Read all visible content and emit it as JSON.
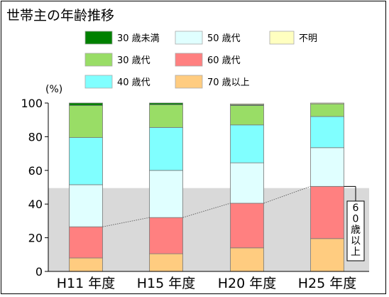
{
  "chart_data": {
    "type": "bar",
    "stacked": true,
    "title": "世帯主の年齢推移",
    "ylabel": "(%)",
    "ylim": [
      0,
      100
    ],
    "yticks": [
      0,
      20,
      40,
      60,
      80,
      100
    ],
    "categories": [
      "H11 年度",
      "H15 年度",
      "H20 年度",
      "H25 年度"
    ],
    "series": [
      {
        "name": "70 歳以上",
        "color": "#ffcc80",
        "values": [
          8,
          10.5,
          14,
          19.5
        ]
      },
      {
        "name": "60 歳代",
        "color": "#ff8080",
        "values": [
          18.5,
          21.5,
          26.5,
          31
        ]
      },
      {
        "name": "50 歳代",
        "color": "#e0ffff",
        "values": [
          25,
          28,
          24,
          23
        ]
      },
      {
        "name": "40 歳代",
        "color": "#80ffff",
        "values": [
          28,
          25.5,
          22.5,
          18.5
        ]
      },
      {
        "name": "30 歳代",
        "color": "#99dd66",
        "values": [
          19,
          13.5,
          11.5,
          7.5
        ]
      },
      {
        "name": "30 歳未満",
        "color": "#008000",
        "values": [
          1.5,
          1,
          0.5,
          0
        ]
      },
      {
        "name": "不明",
        "color": "#ffffc0",
        "values": [
          0,
          0,
          0.5,
          0.5
        ]
      }
    ],
    "legend_order": [
      "30 歳未満",
      "50 歳代",
      "不明",
      "30 歳代",
      "60 歳代",
      "40 歳代",
      "70 歳以上"
    ],
    "highlight_band": {
      "ymin": 0,
      "ymax": 49.5,
      "color": "#d9d9d9"
    },
    "annotation": "60歳以上",
    "grid": false,
    "legend_position": "top"
  }
}
